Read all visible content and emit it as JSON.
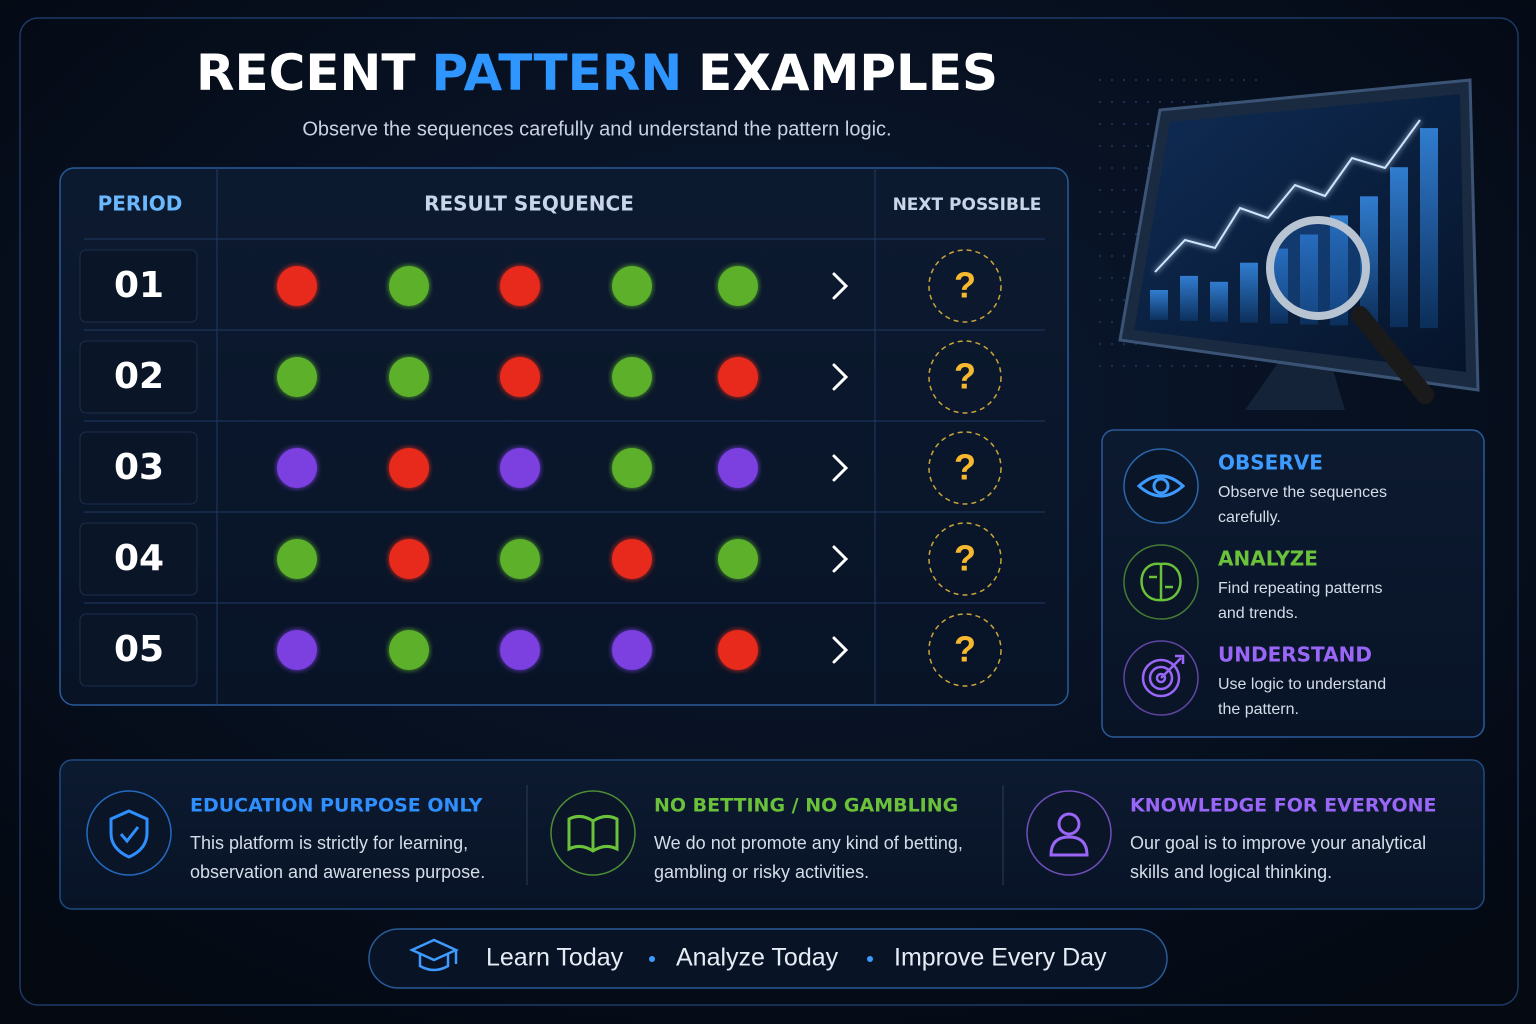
{
  "header": {
    "title": [
      "RECENT",
      "PATTERN",
      "EXAMPLES"
    ],
    "subtitle": "Observe the sequences carefully and understand the pattern logic."
  },
  "table": {
    "columns": [
      "PERIOD",
      "RESULT SEQUENCE",
      "NEXT POSSIBLE"
    ],
    "rows": [
      {
        "period": "01",
        "sequence": [
          "#e8291c",
          "#5bb02a",
          "#e8291c",
          "#5bb02a",
          "#5bb02a"
        ],
        "next": "?"
      },
      {
        "period": "02",
        "sequence": [
          "#5bb02a",
          "#5bb02a",
          "#e8291c",
          "#5bb02a",
          "#e8291c"
        ],
        "next": "?"
      },
      {
        "period": "03",
        "sequence": [
          "#7b3fe0",
          "#e8291c",
          "#7b3fe0",
          "#5bb02a",
          "#7b3fe0"
        ],
        "next": "?"
      },
      {
        "period": "04",
        "sequence": [
          "#5bb02a",
          "#e8291c",
          "#5bb02a",
          "#e8291c",
          "#5bb02a"
        ],
        "next": "?"
      },
      {
        "period": "05",
        "sequence": [
          "#7b3fe0",
          "#5bb02a",
          "#7b3fe0",
          "#7b3fe0",
          "#e8291c"
        ],
        "next": "?"
      }
    ]
  },
  "steps": [
    {
      "title": "OBSERVE",
      "color": "#3d9bff",
      "lines": [
        "Observe the sequences",
        "carefully."
      ]
    },
    {
      "title": "ANALYZE",
      "color": "#6ac13a",
      "lines": [
        "Find repeating patterns",
        "and trends."
      ]
    },
    {
      "title": "UNDERSTAND",
      "color": "#9a66f7",
      "lines": [
        "Use logic to understand",
        "the pattern."
      ]
    }
  ],
  "notices": [
    {
      "title": "EDUCATION PURPOSE ONLY",
      "color": "#2f8fff",
      "lines": [
        "This platform is strictly for learning,",
        "observation and awareness purpose."
      ]
    },
    {
      "title": "NO BETTING / NO GAMBLING",
      "color": "#6ac13a",
      "lines": [
        "We do not promote any kind of betting,",
        "gambling or risky activities."
      ]
    },
    {
      "title": "KNOWLEDGE FOR EVERYONE",
      "color": "#9a66f7",
      "lines": [
        "Our goal is to improve your analytical",
        "skills and logical thinking."
      ]
    }
  ],
  "footer": [
    "Learn Today",
    "Analyze Today",
    "Improve Every Day"
  ]
}
